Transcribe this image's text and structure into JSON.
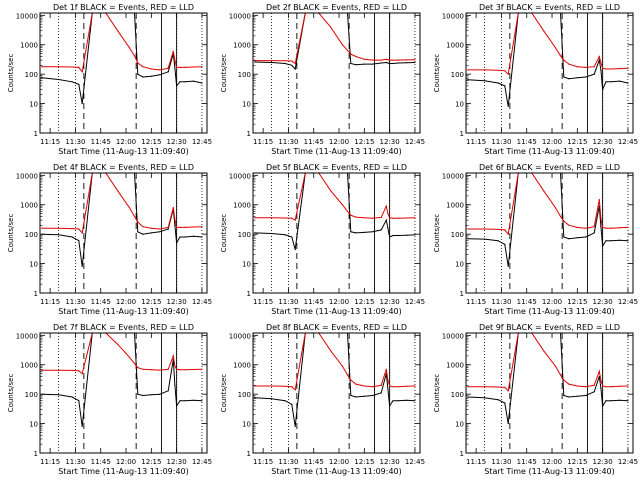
{
  "figure": {
    "xlabel": "Start Time (11-Aug-13 11:09:40)",
    "xticks": [
      "11:15",
      "11:30",
      "11:45",
      "12:00",
      "12:15",
      "12:30",
      "12:45"
    ],
    "ylabel": "Counts/sec",
    "yticks": [
      "1",
      "10",
      "100",
      "1000",
      "10000"
    ],
    "colors": {
      "events": "#000000",
      "lld": "#e00000"
    }
  },
  "chart_data": [
    {
      "type": "line",
      "title": "Det 1f BLACK = Events, RED = LLD",
      "ylim": [
        1,
        12000
      ],
      "log_y": true,
      "series": [
        {
          "key": "events",
          "x": [
            "11:10",
            "11:20",
            "11:28",
            "11:32",
            "11:34",
            "11:40",
            "11:44",
            "11:48",
            "11:55",
            "12:02",
            "12:05",
            "12:07",
            "12:10",
            "12:15",
            "12:20",
            "12:25",
            "12:28",
            "12:29",
            "12:30",
            "12:32",
            "12:35",
            "12:40",
            "12:45"
          ],
          "values": [
            75,
            66,
            55,
            45,
            10,
            12000,
            12000,
            12000,
            12000,
            12000,
            12000,
            100,
            80,
            85,
            95,
            120,
            500,
            160,
            40,
            55,
            55,
            58,
            50
          ]
        },
        {
          "key": "lld",
          "x": [
            "11:10",
            "11:20",
            "11:28",
            "11:32",
            "11:34",
            "11:40",
            "11:44",
            "11:48",
            "11:55",
            "12:02",
            "12:05",
            "12:07",
            "12:10",
            "12:15",
            "12:20",
            "12:25",
            "12:28",
            "12:29",
            "12:30",
            "12:32",
            "12:35",
            "12:40",
            "12:45"
          ],
          "values": [
            180,
            180,
            175,
            170,
            120,
            12000,
            12000,
            12000,
            3000,
            800,
            420,
            240,
            180,
            150,
            140,
            160,
            600,
            300,
            170,
            170,
            170,
            175,
            180
          ]
        }
      ]
    },
    {
      "type": "line",
      "title": "Det 2f BLACK = Events, RED = LLD",
      "ylim": [
        1,
        12000
      ],
      "log_y": true,
      "series": [
        {
          "key": "events",
          "x": [
            "11:10",
            "11:20",
            "11:28",
            "11:32",
            "11:34",
            "11:40",
            "11:44",
            "11:48",
            "11:55",
            "12:02",
            "12:05",
            "12:07",
            "12:10",
            "12:15",
            "12:20",
            "12:25",
            "12:28",
            "12:29",
            "12:30",
            "12:32",
            "12:35",
            "12:40",
            "12:45"
          ],
          "values": [
            260,
            250,
            230,
            200,
            150,
            12000,
            12000,
            12000,
            12000,
            12000,
            12000,
            230,
            210,
            220,
            220,
            240,
            250,
            240,
            230,
            230,
            240,
            245,
            250
          ]
        },
        {
          "key": "lld",
          "x": [
            "11:10",
            "11:20",
            "11:28",
            "11:32",
            "11:34",
            "11:40",
            "11:44",
            "11:48",
            "11:55",
            "12:02",
            "12:05",
            "12:07",
            "12:10",
            "12:15",
            "12:20",
            "12:25",
            "12:28",
            "12:29",
            "12:30",
            "12:32",
            "12:35",
            "12:40",
            "12:45"
          ],
          "values": [
            290,
            290,
            285,
            280,
            230,
            12000,
            12000,
            12000,
            4000,
            1000,
            640,
            480,
            400,
            320,
            300,
            300,
            320,
            310,
            300,
            300,
            300,
            305,
            310
          ]
        }
      ]
    },
    {
      "type": "line",
      "title": "Det 3f BLACK = Events, RED = LLD",
      "ylim": [
        1,
        12000
      ],
      "log_y": true,
      "series": [
        {
          "key": "events",
          "x": [
            "11:10",
            "11:20",
            "11:28",
            "11:32",
            "11:34",
            "11:40",
            "11:44",
            "11:48",
            "11:55",
            "12:02",
            "12:05",
            "12:07",
            "12:10",
            "12:15",
            "12:20",
            "12:25",
            "12:28",
            "12:29",
            "12:30",
            "12:32",
            "12:35",
            "12:40",
            "12:45"
          ],
          "values": [
            65,
            60,
            50,
            40,
            8,
            12000,
            12000,
            12000,
            12000,
            12000,
            12000,
            80,
            70,
            75,
            80,
            100,
            300,
            140,
            30,
            55,
            55,
            58,
            50
          ]
        },
        {
          "key": "lld",
          "x": [
            "11:10",
            "11:20",
            "11:28",
            "11:32",
            "11:34",
            "11:40",
            "11:44",
            "11:48",
            "11:55",
            "12:02",
            "12:05",
            "12:07",
            "12:10",
            "12:15",
            "12:20",
            "12:25",
            "12:28",
            "12:29",
            "12:30",
            "12:32",
            "12:35",
            "12:40",
            "12:45"
          ],
          "values": [
            140,
            140,
            135,
            130,
            100,
            12000,
            12000,
            12000,
            3000,
            800,
            420,
            300,
            220,
            180,
            170,
            180,
            400,
            250,
            160,
            150,
            150,
            155,
            160
          ]
        }
      ]
    },
    {
      "type": "line",
      "title": "Det 4f BLACK = Events, RED = LLD",
      "ylim": [
        1,
        12000
      ],
      "log_y": true,
      "series": [
        {
          "key": "events",
          "x": [
            "11:10",
            "11:20",
            "11:28",
            "11:32",
            "11:34",
            "11:40",
            "11:44",
            "11:48",
            "11:55",
            "12:02",
            "12:05",
            "12:07",
            "12:10",
            "12:15",
            "12:20",
            "12:25",
            "12:28",
            "12:29",
            "12:30",
            "12:32",
            "12:35",
            "12:40",
            "12:45"
          ],
          "values": [
            100,
            95,
            80,
            60,
            8,
            12000,
            12000,
            12000,
            12000,
            12000,
            12000,
            120,
            100,
            110,
            120,
            150,
            700,
            200,
            50,
            80,
            80,
            85,
            80
          ]
        },
        {
          "key": "lld",
          "x": [
            "11:10",
            "11:20",
            "11:28",
            "11:32",
            "11:34",
            "11:40",
            "11:44",
            "11:48",
            "11:55",
            "12:02",
            "12:05",
            "12:07",
            "12:10",
            "12:15",
            "12:20",
            "12:25",
            "12:28",
            "12:29",
            "12:30",
            "12:32",
            "12:35",
            "12:40",
            "12:45"
          ],
          "values": [
            160,
            160,
            155,
            150,
            110,
            12000,
            12000,
            12000,
            3000,
            800,
            400,
            260,
            180,
            160,
            150,
            170,
            800,
            320,
            170,
            170,
            170,
            175,
            180
          ]
        }
      ]
    },
    {
      "type": "line",
      "title": "Det 5f BLACK = Events, RED = LLD",
      "ylim": [
        1,
        12000
      ],
      "log_y": true,
      "series": [
        {
          "key": "events",
          "x": [
            "11:10",
            "11:20",
            "11:28",
            "11:32",
            "11:34",
            "11:40",
            "11:44",
            "11:48",
            "11:55",
            "12:02",
            "12:05",
            "12:07",
            "12:10",
            "12:15",
            "12:20",
            "12:25",
            "12:28",
            "12:29",
            "12:30",
            "12:32",
            "12:35",
            "12:40",
            "12:45"
          ],
          "values": [
            110,
            105,
            95,
            80,
            30,
            12000,
            12000,
            12000,
            12000,
            12000,
            12000,
            120,
            110,
            115,
            120,
            140,
            300,
            160,
            80,
            90,
            90,
            92,
            95
          ]
        },
        {
          "key": "lld",
          "x": [
            "11:10",
            "11:20",
            "11:28",
            "11:32",
            "11:34",
            "11:40",
            "11:44",
            "11:48",
            "11:55",
            "12:02",
            "12:05",
            "12:07",
            "12:10",
            "12:15",
            "12:20",
            "12:25",
            "12:28",
            "12:29",
            "12:30",
            "12:32",
            "12:35",
            "12:40",
            "12:45"
          ],
          "values": [
            360,
            360,
            355,
            350,
            300,
            12000,
            12000,
            12000,
            3000,
            1000,
            600,
            440,
            380,
            360,
            350,
            370,
            900,
            500,
            360,
            350,
            350,
            355,
            360
          ]
        }
      ]
    },
    {
      "type": "line",
      "title": "Det 6f BLACK = Events, RED = LLD",
      "ylim": [
        1,
        12000
      ],
      "log_y": true,
      "series": [
        {
          "key": "events",
          "x": [
            "11:10",
            "11:20",
            "11:28",
            "11:32",
            "11:34",
            "11:40",
            "11:44",
            "11:48",
            "11:55",
            "12:02",
            "12:05",
            "12:07",
            "12:10",
            "12:15",
            "12:20",
            "12:25",
            "12:28",
            "12:29",
            "12:30",
            "12:32",
            "12:35",
            "12:40",
            "12:45"
          ],
          "values": [
            70,
            68,
            60,
            45,
            8,
            12000,
            12000,
            12000,
            12000,
            12000,
            12000,
            80,
            70,
            75,
            80,
            110,
            900,
            180,
            40,
            60,
            60,
            62,
            60
          ]
        },
        {
          "key": "lld",
          "x": [
            "11:10",
            "11:20",
            "11:28",
            "11:32",
            "11:34",
            "11:40",
            "11:44",
            "11:48",
            "11:55",
            "12:02",
            "12:05",
            "12:07",
            "12:10",
            "12:15",
            "12:20",
            "12:25",
            "12:28",
            "12:29",
            "12:30",
            "12:32",
            "12:35",
            "12:40",
            "12:45"
          ],
          "values": [
            150,
            150,
            145,
            140,
            100,
            12000,
            12000,
            12000,
            3000,
            800,
            400,
            280,
            200,
            170,
            160,
            180,
            1500,
            350,
            170,
            160,
            160,
            165,
            170
          ]
        }
      ]
    },
    {
      "type": "line",
      "title": "Det 7f BLACK = Events, RED = LLD",
      "ylim": [
        1,
        12000
      ],
      "log_y": true,
      "series": [
        {
          "key": "events",
          "x": [
            "11:10",
            "11:20",
            "11:28",
            "11:32",
            "11:34",
            "11:40",
            "11:44",
            "11:48",
            "11:55",
            "12:02",
            "12:05",
            "12:07",
            "12:10",
            "12:15",
            "12:20",
            "12:25",
            "12:28",
            "12:29",
            "12:30",
            "12:32",
            "12:35",
            "12:40",
            "12:45"
          ],
          "values": [
            100,
            95,
            80,
            60,
            8,
            12000,
            12000,
            12000,
            12000,
            12000,
            12000,
            100,
            90,
            95,
            100,
            130,
            1500,
            200,
            40,
            60,
            60,
            62,
            60
          ]
        },
        {
          "key": "lld",
          "x": [
            "11:10",
            "11:20",
            "11:28",
            "11:32",
            "11:34",
            "11:40",
            "11:44",
            "11:48",
            "11:55",
            "12:02",
            "12:05",
            "12:07",
            "12:10",
            "12:15",
            "12:20",
            "12:25",
            "12:28",
            "12:29",
            "12:30",
            "12:32",
            "12:35",
            "12:40",
            "12:45"
          ],
          "values": [
            650,
            650,
            640,
            620,
            500,
            12000,
            12000,
            12000,
            5000,
            1800,
            1100,
            800,
            700,
            680,
            660,
            700,
            2000,
            900,
            700,
            680,
            680,
            690,
            700
          ]
        }
      ]
    },
    {
      "type": "line",
      "title": "Det 8f BLACK = Events, RED = LLD",
      "ylim": [
        1,
        12000
      ],
      "log_y": true,
      "series": [
        {
          "key": "events",
          "x": [
            "11:10",
            "11:20",
            "11:28",
            "11:32",
            "11:34",
            "11:40",
            "11:44",
            "11:48",
            "11:55",
            "12:02",
            "12:05",
            "12:07",
            "12:10",
            "12:15",
            "12:20",
            "12:25",
            "12:28",
            "12:29",
            "12:30",
            "12:32",
            "12:35",
            "12:40",
            "12:45"
          ],
          "values": [
            75,
            70,
            60,
            45,
            8,
            12000,
            12000,
            12000,
            12000,
            12000,
            12000,
            90,
            80,
            85,
            90,
            110,
            500,
            150,
            40,
            60,
            60,
            62,
            60
          ]
        },
        {
          "key": "lld",
          "x": [
            "11:10",
            "11:20",
            "11:28",
            "11:32",
            "11:34",
            "11:40",
            "11:44",
            "11:48",
            "11:55",
            "12:02",
            "12:05",
            "12:07",
            "12:10",
            "12:15",
            "12:20",
            "12:25",
            "12:28",
            "12:29",
            "12:30",
            "12:32",
            "12:35",
            "12:40",
            "12:45"
          ],
          "values": [
            190,
            190,
            185,
            180,
            140,
            12000,
            12000,
            12000,
            3000,
            900,
            450,
            300,
            220,
            190,
            180,
            200,
            700,
            300,
            190,
            180,
            180,
            185,
            190
          ]
        }
      ]
    },
    {
      "type": "line",
      "title": "Det 9f BLACK = Events, RED = LLD",
      "ylim": [
        1,
        12000
      ],
      "log_y": true,
      "series": [
        {
          "key": "events",
          "x": [
            "11:10",
            "11:20",
            "11:28",
            "11:32",
            "11:34",
            "11:40",
            "11:44",
            "11:48",
            "11:55",
            "12:02",
            "12:05",
            "12:07",
            "12:10",
            "12:15",
            "12:20",
            "12:25",
            "12:28",
            "12:29",
            "12:30",
            "12:32",
            "12:35",
            "12:40",
            "12:45"
          ],
          "values": [
            80,
            75,
            65,
            50,
            10,
            12000,
            12000,
            12000,
            12000,
            12000,
            12000,
            90,
            80,
            85,
            90,
            120,
            400,
            160,
            40,
            60,
            60,
            62,
            60
          ]
        },
        {
          "key": "lld",
          "x": [
            "11:10",
            "11:20",
            "11:28",
            "11:32",
            "11:34",
            "11:40",
            "11:44",
            "11:48",
            "11:55",
            "12:02",
            "12:05",
            "12:07",
            "12:10",
            "12:15",
            "12:20",
            "12:25",
            "12:28",
            "12:29",
            "12:30",
            "12:32",
            "12:35",
            "12:40",
            "12:45"
          ],
          "values": [
            180,
            180,
            175,
            170,
            130,
            12000,
            12000,
            12000,
            3000,
            900,
            450,
            300,
            220,
            190,
            180,
            200,
            600,
            300,
            190,
            180,
            180,
            185,
            190
          ]
        }
      ]
    }
  ]
}
